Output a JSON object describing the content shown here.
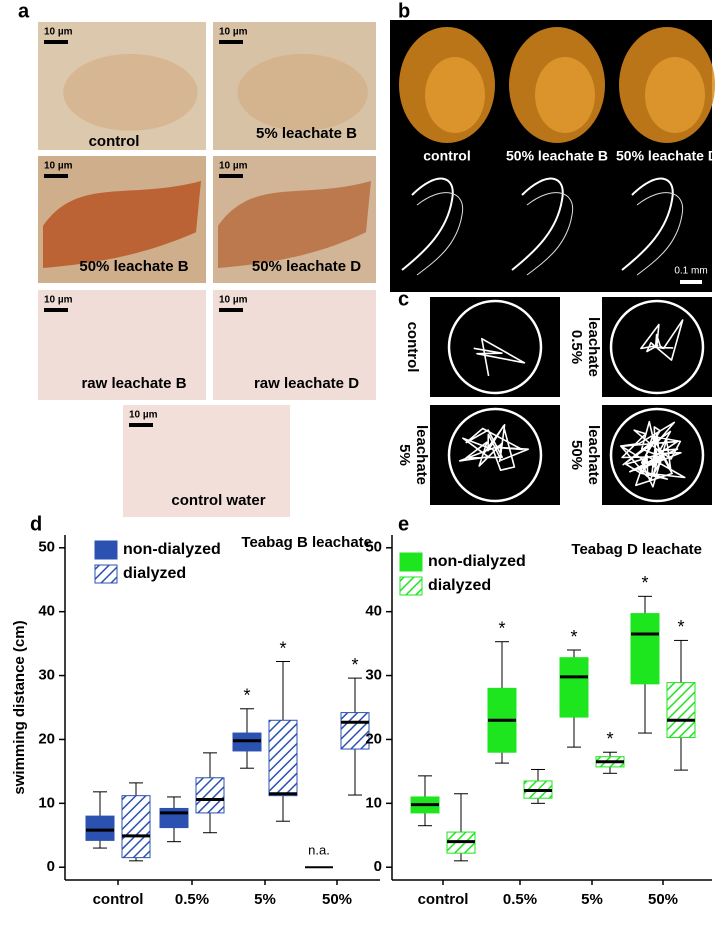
{
  "figure_a": {
    "label": "a",
    "images": [
      {
        "caption": "control",
        "scale_bar": "10 µm"
      },
      {
        "caption": "5% leachate B",
        "scale_bar": "10 µm"
      },
      {
        "caption": "50% leachate B",
        "scale_bar": "10 µm"
      },
      {
        "caption": "50% leachate D",
        "scale_bar": "10 µm"
      },
      {
        "caption": "raw leachate B",
        "scale_bar": "10 µm"
      },
      {
        "caption": "raw leachate D",
        "scale_bar": "10 µm"
      },
      {
        "caption": "control water",
        "scale_bar": "10 µm"
      }
    ]
  },
  "figure_b": {
    "label": "b",
    "captions": [
      "control",
      "50% leachate B",
      "50% leachate D"
    ],
    "scale_bar": "0.1 mm"
  },
  "figure_c": {
    "label": "c",
    "panels": [
      {
        "lines": [
          "control"
        ]
      },
      {
        "lines": [
          "0.5%",
          "leachate"
        ]
      },
      {
        "lines": [
          "5%",
          "leachate"
        ]
      },
      {
        "lines": [
          "50%",
          "leachate"
        ]
      }
    ]
  },
  "chart_data": [
    {
      "type": "box",
      "panel_label": "d",
      "title": "Teabag B leachate",
      "ylabel": "swimming distance (cm)",
      "categories": [
        "control",
        "0.5%",
        "5%",
        "50%"
      ],
      "ylim": [
        -2,
        52
      ],
      "yticks": [
        0,
        10,
        20,
        30,
        40,
        50
      ],
      "series": [
        {
          "name": "non-dialyzed",
          "color": "#2b52b0",
          "hatch": false,
          "boxes": [
            {
              "min": 3,
              "q1": 4.2,
              "median": 5.8,
              "q3": 8,
              "max": 11.8
            },
            {
              "min": 4,
              "q1": 6.2,
              "median": 8.5,
              "q3": 9.2,
              "max": 11
            },
            {
              "min": 15.5,
              "q1": 18.2,
              "median": 19.8,
              "q3": 21,
              "max": 24.8,
              "annotation": "*"
            },
            {
              "median": 0,
              "annotation": "n.a."
            }
          ]
        },
        {
          "name": "dialyzed",
          "color": "#2b52b0",
          "hatch": true,
          "boxes": [
            {
              "min": 1,
              "q1": 1.5,
              "median": 4.9,
              "q3": 11.2,
              "max": 13.2
            },
            {
              "min": 5.4,
              "q1": 8.5,
              "median": 10.6,
              "q3": 14,
              "max": 17.9
            },
            {
              "min": 7.2,
              "q1": 11.2,
              "median": 11.5,
              "q3": 23,
              "max": 32.2,
              "annotation": "*"
            },
            {
              "min": 11.3,
              "q1": 18.5,
              "median": 22.7,
              "q3": 24.2,
              "max": 29.6,
              "annotation": "*"
            }
          ]
        }
      ]
    },
    {
      "type": "box",
      "panel_label": "e",
      "title": "Teabag D leachate",
      "categories": [
        "control",
        "0.5%",
        "5%",
        "50%"
      ],
      "ylim": [
        -2,
        52
      ],
      "yticks": [
        0,
        10,
        20,
        30,
        40,
        50
      ],
      "series": [
        {
          "name": "non-dialyzed",
          "color": "#1ee61e",
          "hatch": false,
          "boxes": [
            {
              "min": 6.5,
              "q1": 8.5,
              "median": 9.8,
              "q3": 11,
              "max": 14.3
            },
            {
              "min": 16.3,
              "q1": 18,
              "median": 23,
              "q3": 28,
              "max": 35.3,
              "annotation": "*"
            },
            {
              "min": 18.8,
              "q1": 23.5,
              "median": 29.8,
              "q3": 32.8,
              "max": 34,
              "annotation": "*"
            },
            {
              "min": 21,
              "q1": 28.7,
              "median": 36.5,
              "q3": 39.7,
              "max": 42.4,
              "annotation": "*"
            }
          ]
        },
        {
          "name": "dialyzed",
          "color": "#1ee61e",
          "hatch": true,
          "boxes": [
            {
              "min": 1,
              "q1": 2.2,
              "median": 4,
              "q3": 5.5,
              "max": 11.5
            },
            {
              "min": 10,
              "q1": 10.8,
              "median": 12,
              "q3": 13.5,
              "max": 15.3
            },
            {
              "min": 14.7,
              "q1": 15.7,
              "median": 16.5,
              "q3": 17.3,
              "max": 18,
              "annotation": "*"
            },
            {
              "min": 15.2,
              "q1": 20.3,
              "median": 23,
              "q3": 28.9,
              "max": 35.5,
              "annotation": "*"
            }
          ]
        }
      ]
    }
  ]
}
